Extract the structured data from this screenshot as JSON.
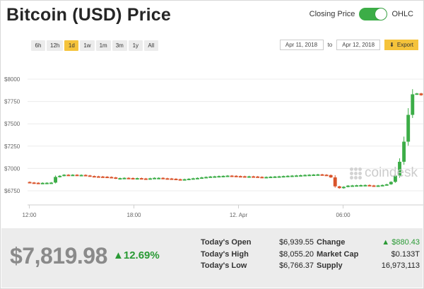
{
  "header": {
    "title": "Bitcoin (USD) Price",
    "toggle_left_label": "Closing Price",
    "toggle_right_label": "OHLC",
    "toggle_state": "OHLC",
    "toggle_color": "#3cad47"
  },
  "ranges": {
    "buttons": [
      "6h",
      "12h",
      "1d",
      "1w",
      "1m",
      "3m",
      "1y",
      "All"
    ],
    "active": "1d",
    "active_color": "#f5c33b"
  },
  "dates": {
    "from": "Apr 11, 2018",
    "separator": "to",
    "to": "Apr 12, 2018",
    "export_label": "Export",
    "export_icon": "download-arrow-icon"
  },
  "watermark": {
    "text": "coindesk",
    "icon": "coindesk-logo"
  },
  "chart_data": {
    "type": "ohlc-candlestick",
    "ylim": [
      6600,
      8150
    ],
    "y_ticks": [
      6750,
      7000,
      7250,
      7500,
      7750,
      8000
    ],
    "y_tick_labels": [
      "$6750",
      "$7000",
      "$7250",
      "$7500",
      "$7750",
      "$8000"
    ],
    "x_ticks": [
      {
        "t": 12,
        "label": "12:00"
      },
      {
        "t": 18,
        "label": "18:00"
      },
      {
        "t": 24,
        "label": "12. Apr"
      },
      {
        "t": 30,
        "label": "06:00"
      }
    ],
    "xlim": [
      11.9,
      34.6
    ],
    "up_color": "#3cad47",
    "down_color": "#d9542b",
    "closes": [
      6843,
      6840,
      6838,
      6839,
      6840,
      6842,
      6905,
      6918,
      6930,
      6925,
      6930,
      6926,
      6928,
      6922,
      6915,
      6912,
      6910,
      6908,
      6905,
      6900,
      6888,
      6892,
      6895,
      6893,
      6890,
      6892,
      6888,
      6886,
      6890,
      6895,
      6895,
      6890,
      6888,
      6885,
      6880,
      6875,
      6880,
      6885,
      6890,
      6894,
      6900,
      6905,
      6910,
      6912,
      6915,
      6917,
      6920,
      6918,
      6915,
      6913,
      6912,
      6912,
      6910,
      6906,
      6904,
      6905,
      6908,
      6910,
      6912,
      6915,
      6918,
      6920,
      6922,
      6925,
      6928,
      6930,
      6932,
      6934,
      6930,
      6926,
      6900,
      6800,
      6780,
      6795,
      6808,
      6810,
      6812,
      6814,
      6815,
      6810,
      6808,
      6810,
      6815,
      6823,
      6850,
      6920,
      7075,
      7300,
      7600,
      7830,
      7840,
      7819.98
    ]
  },
  "summary": {
    "price": "$7,819.98",
    "change_pct": "12.69%",
    "left_stats": [
      {
        "label": "Today's Open",
        "value": "$6,939.55"
      },
      {
        "label": "Today's High",
        "value": "$8,055.20"
      },
      {
        "label": "Today's Low",
        "value": "$6,766.37"
      }
    ],
    "right_stats": [
      {
        "label": "Change",
        "value": "▲ $880.43"
      },
      {
        "label": "Market Cap",
        "value": "$0.133T"
      },
      {
        "label": "Supply",
        "value": "16,973,113"
      }
    ]
  }
}
